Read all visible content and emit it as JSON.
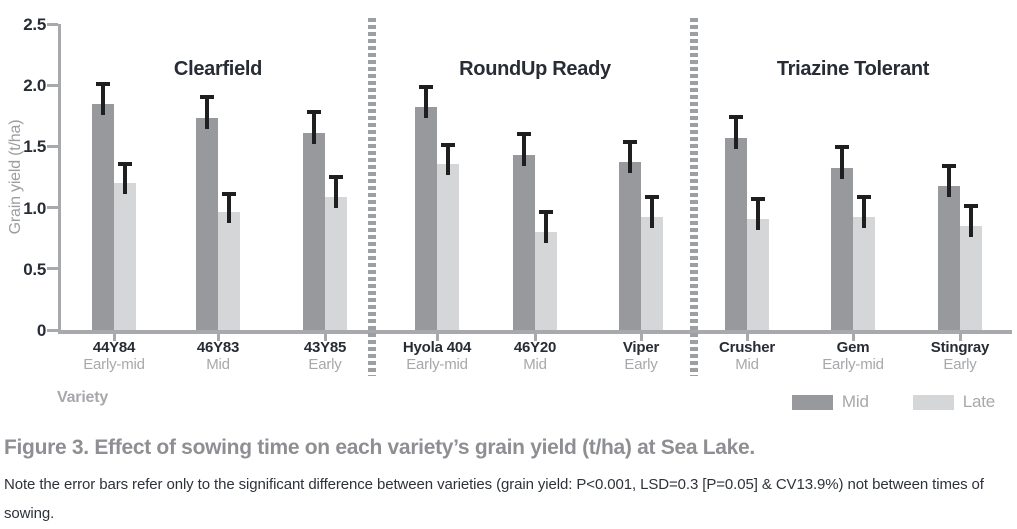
{
  "chart_data": {
    "type": "bar",
    "title": "",
    "ylabel": "Grain yield (t/ha)",
    "xlabel": "Variety",
    "ylim": [
      0,
      2.5
    ],
    "yticks": [
      "0",
      "0.5",
      "1.0",
      "1.5",
      "2.0",
      "2.5"
    ],
    "grid": false,
    "legend_position": "bottom-right",
    "series_names": [
      "Mid",
      "Late"
    ],
    "groups": [
      {
        "title": "Clearfield",
        "varieties": [
          {
            "name": "44Y84",
            "sowing": "Early-mid",
            "mid": 1.85,
            "mid_err": 0.18,
            "late": 1.2,
            "late_err": 0.17
          },
          {
            "name": "46Y83",
            "sowing": "Mid",
            "mid": 1.73,
            "mid_err": 0.19,
            "late": 0.96,
            "late_err": 0.17
          },
          {
            "name": "43Y85",
            "sowing": "Early",
            "mid": 1.61,
            "mid_err": 0.19,
            "late": 1.09,
            "late_err": 0.18
          }
        ]
      },
      {
        "title": "RoundUp Ready",
        "varieties": [
          {
            "name": "Hyola 404",
            "sowing": "Early-mid",
            "mid": 1.82,
            "mid_err": 0.18,
            "late": 1.36,
            "late_err": 0.17
          },
          {
            "name": "46Y20",
            "sowing": "Mid",
            "mid": 1.43,
            "mid_err": 0.19,
            "late": 0.8,
            "late_err": 0.18
          },
          {
            "name": "Viper",
            "sowing": "Early",
            "mid": 1.37,
            "mid_err": 0.18,
            "late": 0.92,
            "late_err": 0.18
          }
        ]
      },
      {
        "title": "Triazine Tolerant",
        "varieties": [
          {
            "name": "Crusher",
            "sowing": "Mid",
            "mid": 1.57,
            "mid_err": 0.19,
            "late": 0.91,
            "late_err": 0.18
          },
          {
            "name": "Gem",
            "sowing": "Early-mid",
            "mid": 1.32,
            "mid_err": 0.19,
            "late": 0.92,
            "late_err": 0.18
          },
          {
            "name": "Stingray",
            "sowing": "Early",
            "mid": 1.18,
            "mid_err": 0.18,
            "late": 0.85,
            "late_err": 0.18
          }
        ]
      }
    ],
    "legend": [
      {
        "label": "Mid",
        "color": "#97999c"
      },
      {
        "label": "Late",
        "color": "#d4d6d8"
      }
    ]
  },
  "colors": {
    "bar_mid": "#97999c",
    "bar_late": "#d4d6d8",
    "error_bar": "#1f1f1f",
    "axis": "#a7a9ac",
    "dark_text": "#272c35",
    "gray_text": "#a6a8ab",
    "caption_title": "#8d8f92"
  },
  "caption": {
    "title": "Figure 3. Effect of sowing time on each variety’s grain yield (t/ha) at Sea Lake.",
    "note": "Note the error bars refer only to the significant difference between varieties (grain yield: P<0.001, LSD=0.3 [P=0.05] & CV13.9%) not between times of sowing."
  }
}
